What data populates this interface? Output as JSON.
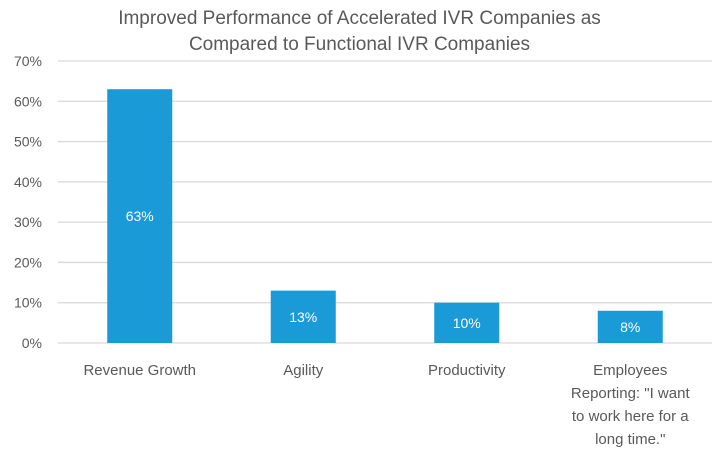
{
  "chart_data": {
    "type": "bar",
    "title_lines": [
      "Improved Performance of Accelerated IVR Companies as",
      "Compared to Functional IVR Companies"
    ],
    "categories": [
      [
        "Revenue Growth"
      ],
      [
        "Agility"
      ],
      [
        "Productivity"
      ],
      [
        "Employees",
        "Reporting: \"I want",
        "to work here for a",
        "long time.\""
      ]
    ],
    "values": [
      63,
      13,
      10,
      8
    ],
    "data_labels": [
      "63%",
      "13%",
      "10%",
      "8%"
    ],
    "y_ticks": [
      {
        "value": 0,
        "label": "0%"
      },
      {
        "value": 10,
        "label": "10%"
      },
      {
        "value": 20,
        "label": "20%"
      },
      {
        "value": 30,
        "label": "30%"
      },
      {
        "value": 40,
        "label": "40%"
      },
      {
        "value": 50,
        "label": "50%"
      },
      {
        "value": 60,
        "label": "60%"
      },
      {
        "value": 70,
        "label": "70%"
      }
    ],
    "ylim": [
      0,
      70
    ],
    "xlabel": "",
    "ylabel": "",
    "grid": true,
    "legend": "none",
    "bar_color": "#1a9ad6",
    "grid_color": "#d9d9d9",
    "text_color": "#595959",
    "label_color": "#ffffff"
  }
}
